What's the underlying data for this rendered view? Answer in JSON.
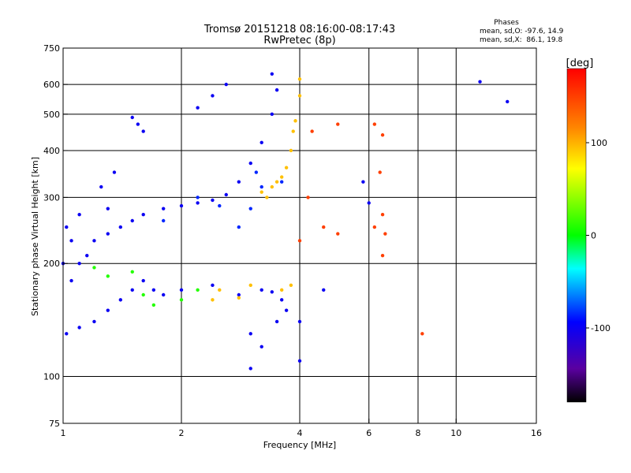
{
  "chart_data": {
    "type": "scatter",
    "title": "Tromsø 20151218 08:16:00-08:17:43",
    "subtitle": "RwPretec (8p)",
    "xlabel": "Frequency [MHz]",
    "ylabel": "Stationary phase Virtual Height [km]",
    "x_scale": "log",
    "y_scale": "log",
    "xlim": [
      1,
      16
    ],
    "ylim": [
      75,
      750
    ],
    "grid": true,
    "x_ticks": [
      1,
      2,
      4,
      6,
      8,
      10,
      16
    ],
    "x_tick_labels": [
      "1",
      "2",
      "4",
      "6",
      "8",
      "10",
      "16"
    ],
    "y_ticks": [
      75,
      100,
      200,
      300,
      400,
      500,
      600,
      750
    ],
    "y_tick_labels": [
      "75",
      "100",
      "200",
      "300",
      "400",
      "500",
      "600",
      "750"
    ],
    "phases_box": {
      "title": "Phases",
      "line_o": "mean, sd,O: -97.6, 14.9",
      "line_x": "mean, sd,X:  86.1, 19.8"
    },
    "colorbar": {
      "unit_label": "[deg]",
      "range": [
        -180,
        180
      ],
      "ticks": [
        100,
        0,
        -100
      ],
      "tick_labels": [
        "100",
        "0",
        "-100"
      ]
    },
    "series": [
      {
        "phase": -100,
        "points": [
          [
            1.02,
            130
          ],
          [
            1.1,
            135
          ],
          [
            1.2,
            140
          ],
          [
            1.3,
            150
          ],
          [
            1.4,
            160
          ],
          [
            1.5,
            170
          ],
          [
            1.6,
            180
          ],
          [
            1.7,
            170
          ],
          [
            1.8,
            165
          ],
          [
            1.05,
            180
          ],
          [
            1.1,
            200
          ],
          [
            1.15,
            210
          ],
          [
            1.2,
            230
          ],
          [
            1.3,
            240
          ],
          [
            1.4,
            250
          ],
          [
            1.5,
            260
          ],
          [
            1.6,
            270
          ],
          [
            1.8,
            280
          ],
          [
            2.0,
            285
          ],
          [
            2.2,
            290
          ],
          [
            2.4,
            295
          ],
          [
            2.6,
            305
          ],
          [
            2.8,
            330
          ],
          [
            3.0,
            370
          ],
          [
            3.2,
            420
          ],
          [
            3.4,
            500
          ],
          [
            3.5,
            580
          ],
          [
            3.4,
            640
          ],
          [
            2.6,
            600
          ],
          [
            2.4,
            560
          ],
          [
            2.2,
            520
          ],
          [
            1.55,
            470
          ],
          [
            1.6,
            450
          ],
          [
            1.5,
            490
          ],
          [
            1.0,
            200
          ],
          [
            1.05,
            230
          ],
          [
            1.02,
            250
          ],
          [
            1.1,
            270
          ],
          [
            1.3,
            280
          ],
          [
            1.25,
            320
          ],
          [
            1.35,
            350
          ],
          [
            2.0,
            170
          ],
          [
            2.4,
            175
          ],
          [
            2.8,
            165
          ],
          [
            3.2,
            170
          ],
          [
            3.4,
            168
          ],
          [
            3.6,
            160
          ],
          [
            4.0,
            140
          ],
          [
            3.0,
            130
          ],
          [
            3.2,
            120
          ],
          [
            3.5,
            140
          ],
          [
            3.7,
            150
          ],
          [
            4.0,
            110
          ],
          [
            3.0,
            105
          ],
          [
            5.8,
            330
          ],
          [
            6.0,
            290
          ],
          [
            4.6,
            170
          ],
          [
            11.5,
            610
          ],
          [
            13.5,
            540
          ]
        ]
      },
      {
        "phase": -85,
        "points": [
          [
            2.8,
            250
          ],
          [
            3.0,
            280
          ],
          [
            3.2,
            320
          ],
          [
            3.6,
            330
          ],
          [
            2.2,
            300
          ],
          [
            2.5,
            285
          ],
          [
            3.1,
            350
          ],
          [
            1.8,
            260
          ]
        ]
      },
      {
        "phase": 10,
        "points": [
          [
            1.2,
            195
          ],
          [
            1.3,
            185
          ],
          [
            1.6,
            165
          ],
          [
            1.7,
            155
          ],
          [
            2.0,
            160
          ],
          [
            2.2,
            170
          ],
          [
            1.5,
            190
          ]
        ]
      },
      {
        "phase": 95,
        "points": [
          [
            3.2,
            310
          ],
          [
            3.4,
            320
          ],
          [
            3.6,
            340
          ],
          [
            3.8,
            400
          ],
          [
            3.9,
            480
          ],
          [
            4.0,
            560
          ],
          [
            4.0,
            620
          ],
          [
            3.3,
            300
          ],
          [
            3.5,
            330
          ],
          [
            3.7,
            360
          ],
          [
            3.85,
            450
          ],
          [
            2.4,
            160
          ],
          [
            2.8,
            162
          ],
          [
            3.6,
            170
          ],
          [
            2.5,
            170
          ],
          [
            3.8,
            175
          ],
          [
            3.0,
            175
          ]
        ]
      },
      {
        "phase": 150,
        "points": [
          [
            4.2,
            300
          ],
          [
            4.6,
            250
          ],
          [
            5.0,
            240
          ],
          [
            6.2,
            250
          ],
          [
            6.5,
            210
          ],
          [
            6.6,
            240
          ],
          [
            6.5,
            270
          ],
          [
            5.0,
            470
          ],
          [
            6.2,
            470
          ],
          [
            6.5,
            440
          ],
          [
            6.4,
            350
          ],
          [
            8.2,
            130
          ],
          [
            4.3,
            450
          ],
          [
            4.0,
            230
          ]
        ]
      }
    ]
  }
}
